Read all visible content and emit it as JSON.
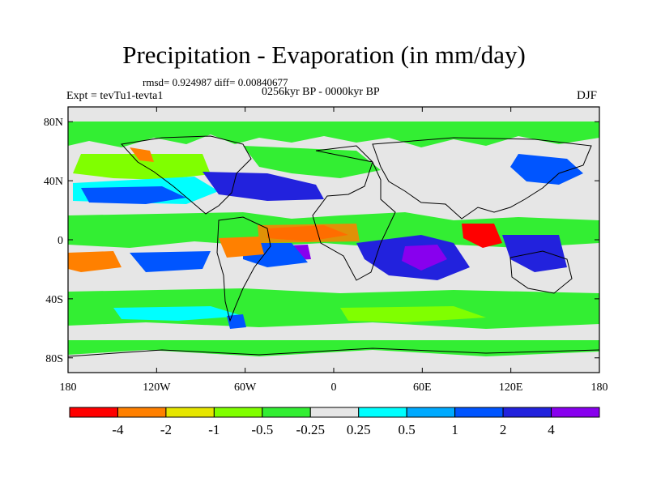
{
  "title": "Precipitation - Evaporation (in mm/day)",
  "stats": "rmsd= 0.924987 diff= 0.00840677",
  "experiment": "Expt = tevTu1-tevta1",
  "period": "0256kyr BP - 0000kyr BP",
  "season": "DJF",
  "map": {
    "projection": "cylindrical-equidistant",
    "lat_ticks": [
      "80N",
      "40N",
      "0",
      "40S",
      "80S"
    ],
    "lon_ticks": [
      "180",
      "120W",
      "60W",
      "0",
      "60E",
      "120E",
      "180"
    ],
    "background_color": "#e6e6e6"
  },
  "colorbar": {
    "labels": [
      "-4",
      "-2",
      "-1",
      "-0.5",
      "-0.25",
      "0.25",
      "0.5",
      "1",
      "2",
      "4"
    ],
    "colors": [
      "#ff0000",
      "#ff8000",
      "#e6e600",
      "#80ff00",
      "#33ee33",
      "#e6e6e6",
      "#00ffff",
      "#00aaff",
      "#0055ff",
      "#2222dd",
      "#8800ee"
    ]
  }
}
